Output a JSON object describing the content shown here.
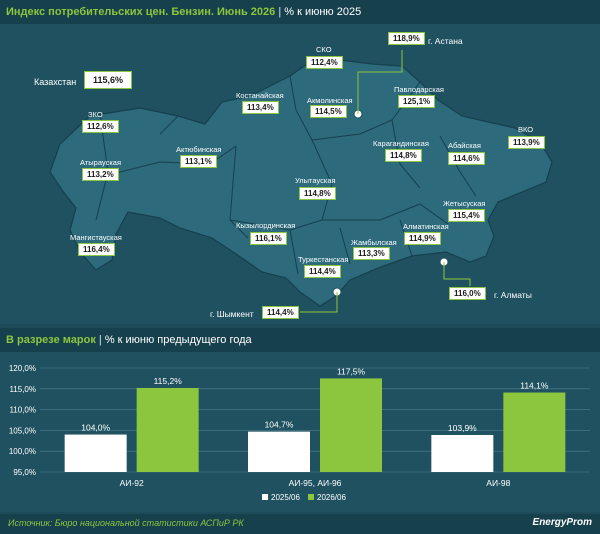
{
  "header_top": {
    "title": "Индекс потребительских цен. Бензин. Июнь 2026",
    "subtitle": "% к июню 2025"
  },
  "country": {
    "label": "Казахстан",
    "value": "115,6%"
  },
  "regions": [
    {
      "name": "СКО",
      "value": "112,4%"
    },
    {
      "name": "Костанайская",
      "value": "113,4%"
    },
    {
      "name": "Акмолинская",
      "value": "114,5%"
    },
    {
      "name": "Павлодарская",
      "value": "125,1%"
    },
    {
      "name": "г. Астана",
      "value": "118,9%"
    },
    {
      "name": "ЗКО",
      "value": "112,6%"
    },
    {
      "name": "Актюбинская",
      "value": "113,1%"
    },
    {
      "name": "Атырауская",
      "value": "113,2%"
    },
    {
      "name": "Карагандинская",
      "value": "114,8%"
    },
    {
      "name": "Абайская",
      "value": "114,6%"
    },
    {
      "name": "ВКО",
      "value": "113,9%"
    },
    {
      "name": "Улытауская",
      "value": "114,8%"
    },
    {
      "name": "Жетысуская",
      "value": "115,4%"
    },
    {
      "name": "Мангистауская",
      "value": "116,4%"
    },
    {
      "name": "Кызылординская",
      "value": "116,1%"
    },
    {
      "name": "Жамбылская",
      "value": "113,3%"
    },
    {
      "name": "Алматинская",
      "value": "114,9%"
    },
    {
      "name": "Туркестанская",
      "value": "114,4%"
    },
    {
      "name": "г. Алматы",
      "value": "116,0%"
    },
    {
      "name": "г. Шымкент",
      "value": "114,4%"
    }
  ],
  "header_bottom": {
    "title": "В разрезе марок",
    "subtitle": "% к июню предыдущего года"
  },
  "chart_data": {
    "type": "bar",
    "categories": [
      "АИ-92",
      "АИ-95, АИ-96",
      "АИ-98"
    ],
    "series": [
      {
        "name": "2025/06",
        "values": [
          104.0,
          104.7,
          103.9
        ],
        "labels": [
          "104,0%",
          "104,7%",
          "103,9%"
        ],
        "color": "#ffffff"
      },
      {
        "name": "2026/06",
        "values": [
          115.2,
          117.5,
          114.1
        ],
        "labels": [
          "115,2%",
          "117,5%",
          "114,1%"
        ],
        "color": "#8cc63f"
      }
    ],
    "ylim": [
      95,
      120
    ],
    "yticks": [
      "95,0%",
      "100,0%",
      "105,0%",
      "110,0%",
      "115,0%",
      "120,0%"
    ],
    "ytick_values": [
      95,
      100,
      105,
      110,
      115,
      120
    ],
    "grid": true,
    "legend_position": "bottom-center"
  },
  "footer": {
    "source": "Источник: Бюро национальной статистики АСПиР РК",
    "brand": "EnergyProm"
  }
}
